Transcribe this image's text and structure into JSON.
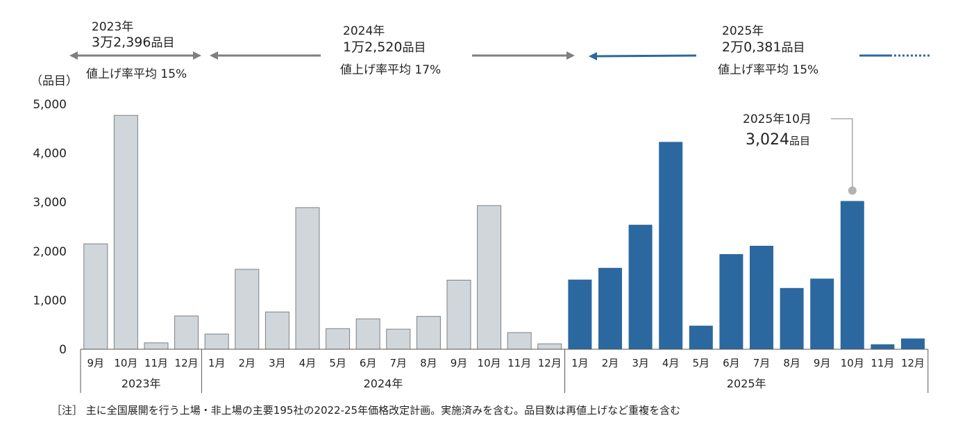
{
  "chart_data": {
    "type": "bar",
    "ylabel": "（品目）",
    "ylim": [
      0,
      5000
    ],
    "yticks": [
      {
        "value": 0,
        "label": "0"
      },
      {
        "value": 1000,
        "label": "1,000"
      },
      {
        "value": 2000,
        "label": "2,000"
      },
      {
        "value": 3000,
        "label": "3,000"
      },
      {
        "value": 4000,
        "label": "4,000"
      },
      {
        "value": 5000,
        "label": "5,000"
      }
    ],
    "categories": [
      "9月",
      "10月",
      "11月",
      "12月",
      "1月",
      "2月",
      "3月",
      "4月",
      "5月",
      "6月",
      "7月",
      "8月",
      "9月",
      "10月",
      "11月",
      "12月",
      "1月",
      "2月",
      "3月",
      "4月",
      "5月",
      "6月",
      "7月",
      "8月",
      "9月",
      "10月",
      "11月",
      "12月"
    ],
    "series": [
      {
        "values": [
          2150,
          4770,
          130,
          680,
          310,
          1630,
          760,
          2890,
          420,
          620,
          410,
          670,
          1410,
          2930,
          340,
          110,
          1420,
          1660,
          2540,
          4230,
          480,
          1940,
          2110,
          1250,
          1440,
          3024,
          100,
          220
        ]
      }
    ],
    "bar_colors": {
      "2023": "#d1d6da",
      "2024": "#d1d6da",
      "2025": "#2c68a0"
    },
    "bar_stroke": {
      "2023": "#7c8084",
      "2024": "#7c8084",
      "2025": "#2c68a0"
    },
    "year_groups": [
      {
        "label": "2023年",
        "start": 0,
        "end": 3
      },
      {
        "label": "2024年",
        "start": 4,
        "end": 15
      },
      {
        "label": "2025年",
        "start": 16,
        "end": 27
      }
    ],
    "callout": {
      "index": 25,
      "line1": "2025年10月",
      "line2_value": "3,024",
      "line2_unit": "品目"
    },
    "period_summaries": [
      {
        "year": "2023年",
        "amount": "3万2,396",
        "unit": "品目",
        "rate": "値上げ率平均 15%"
      },
      {
        "year": "2024年",
        "amount": "1万2,520",
        "unit": "品目",
        "rate": "値上げ率平均  17%"
      },
      {
        "year": "2025年",
        "amount": "2万0,381",
        "unit": "品目",
        "rate": "値上げ率平均  15%"
      }
    ],
    "arrow_colors": {
      "gray": "#7f7f7f",
      "blue": "#2c68a0"
    },
    "note": "［注］ 主に全国展開を行う上場・非上場の主要195社の2022-25年価格改定計画。実施済みを含む。品目数は再値上げなど重複を含む"
  }
}
